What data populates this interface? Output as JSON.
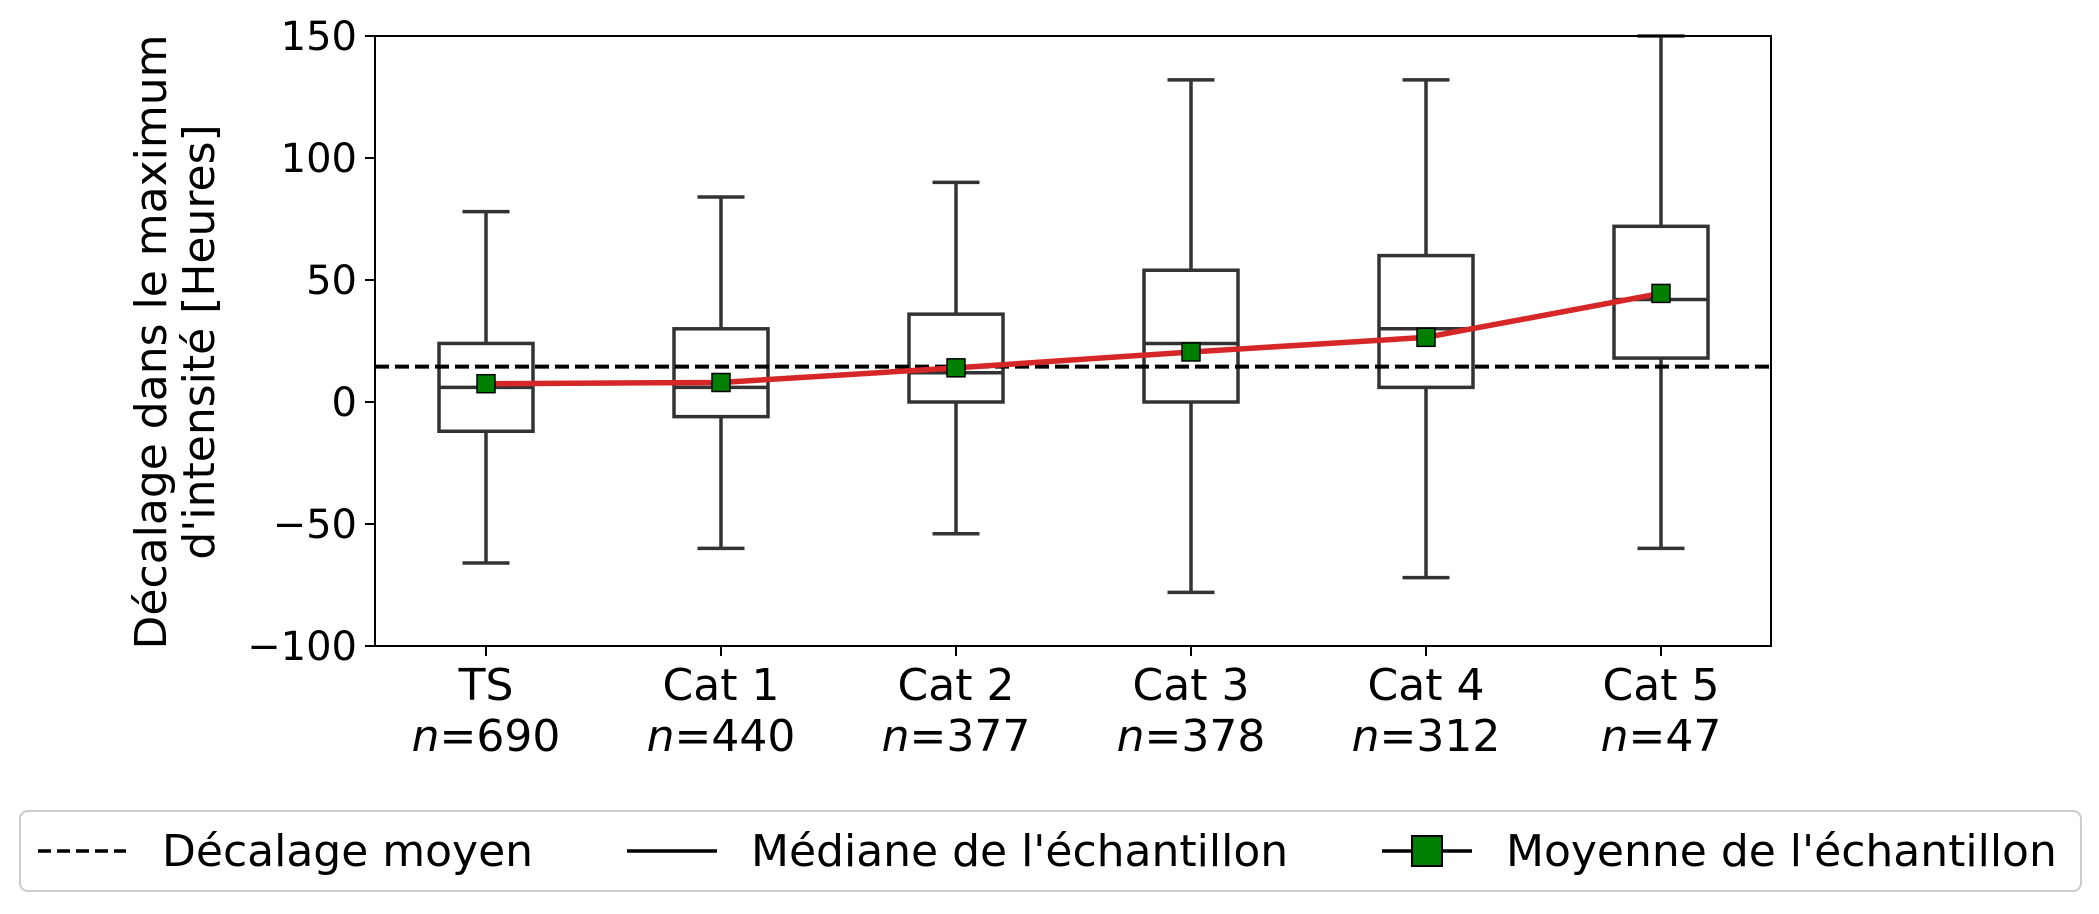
{
  "chart_data": {
    "type": "box",
    "ylabel_lines": [
      "Décalage dans le maximum",
      "d'intensité [Heures]"
    ],
    "ylim": [
      -100,
      150
    ],
    "yticks": [
      -100,
      -50,
      0,
      50,
      100,
      150
    ],
    "ytick_labels": [
      "−100",
      "−50",
      "0",
      "50",
      "100",
      "150"
    ],
    "categories": [
      "TS",
      "Cat 1",
      "Cat 2",
      "Cat 3",
      "Cat 4",
      "Cat 5"
    ],
    "n_prefix": "n",
    "n_values": [
      "=690",
      "=440",
      "=377",
      "=378",
      "=312",
      "=47"
    ],
    "boxes": [
      {
        "whisker_low": -66,
        "q1": -12,
        "median": 6,
        "q3": 24,
        "whisker_high": 78
      },
      {
        "whisker_low": -60,
        "q1": -6,
        "median": 6,
        "q3": 30,
        "whisker_high": 84
      },
      {
        "whisker_low": -54,
        "q1": 0,
        "median": 12,
        "q3": 36,
        "whisker_high": 90
      },
      {
        "whisker_low": -78,
        "q1": 0,
        "median": 24,
        "q3": 54,
        "whisker_high": 132
      },
      {
        "whisker_low": -72,
        "q1": 6,
        "median": 30,
        "q3": 60,
        "whisker_high": 132
      },
      {
        "whisker_low": -60,
        "q1": 18,
        "median": 42,
        "q3": 72,
        "whisker_high": 150
      }
    ],
    "means": [
      7.5,
      8,
      14,
      20.5,
      26.5,
      44.5
    ],
    "mean_shift": 14.5,
    "grid": false,
    "legend_position": "bottom",
    "colors": {
      "box": "#333333",
      "mean_line": "#d62728",
      "mean_marker": "#008000",
      "dashed": "#000000"
    }
  },
  "legend": {
    "items": [
      {
        "label": "Décalage moyen"
      },
      {
        "label": "Médiane de l'échantillon"
      },
      {
        "label": "Moyenne de l'échantillon"
      }
    ]
  }
}
